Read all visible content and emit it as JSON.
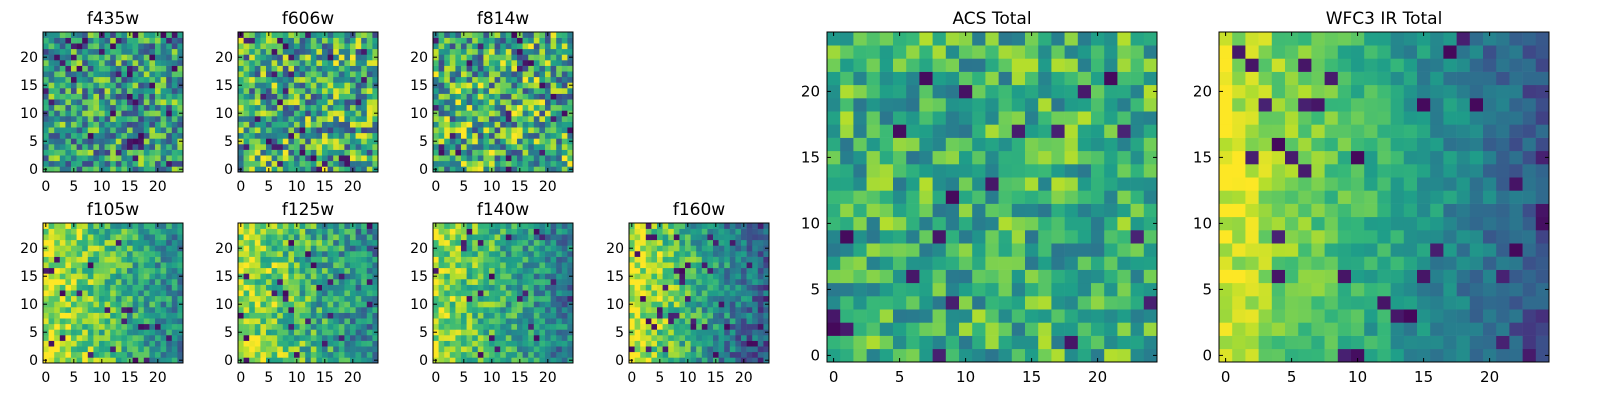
{
  "chart_data": [
    {
      "id": "f435w",
      "type": "heatmap",
      "title": "f435w",
      "n": 25,
      "pattern": "noise",
      "mean": 0.55,
      "amp": 0.35,
      "dark": 0.06,
      "xticks": [
        0,
        5,
        10,
        15,
        20
      ],
      "yticks": [
        0,
        5,
        10,
        15,
        20
      ],
      "xlim": [
        0,
        24
      ],
      "ylim": [
        0,
        24
      ],
      "colormap": "viridis"
    },
    {
      "id": "f606w",
      "type": "heatmap",
      "title": "f606w",
      "n": 25,
      "pattern": "noise",
      "mean": 0.6,
      "amp": 0.4,
      "dark": 0.05,
      "xticks": [
        0,
        5,
        10,
        15,
        20
      ],
      "yticks": [
        0,
        5,
        10,
        15,
        20
      ],
      "xlim": [
        0,
        24
      ],
      "ylim": [
        0,
        24
      ],
      "colormap": "viridis"
    },
    {
      "id": "f814w",
      "type": "heatmap",
      "title": "f814w",
      "n": 25,
      "pattern": "noise",
      "mean": 0.62,
      "amp": 0.4,
      "dark": 0.05,
      "xticks": [
        0,
        5,
        10,
        15,
        20
      ],
      "yticks": [
        0,
        5,
        10,
        15,
        20
      ],
      "xlim": [
        0,
        24
      ],
      "ylim": [
        0,
        24
      ],
      "colormap": "viridis"
    },
    {
      "id": "f105w",
      "type": "heatmap",
      "title": "f105w",
      "n": 25,
      "pattern": "gradient",
      "mean": 0.68,
      "amp": 0.22,
      "dark": 0.03,
      "xticks": [
        0,
        5,
        10,
        15,
        20
      ],
      "yticks": [
        0,
        5,
        10,
        15,
        20
      ],
      "xlim": [
        0,
        24
      ],
      "ylim": [
        0,
        24
      ],
      "colormap": "viridis"
    },
    {
      "id": "f125w",
      "type": "heatmap",
      "title": "f125w",
      "n": 25,
      "pattern": "gradient",
      "mean": 0.65,
      "amp": 0.25,
      "dark": 0.04,
      "xticks": [
        0,
        5,
        10,
        15,
        20
      ],
      "yticks": [
        0,
        5,
        10,
        15,
        20
      ],
      "xlim": [
        0,
        24
      ],
      "ylim": [
        0,
        24
      ],
      "colormap": "viridis"
    },
    {
      "id": "f140w",
      "type": "heatmap",
      "title": "f140w",
      "n": 25,
      "pattern": "gradient",
      "mean": 0.62,
      "amp": 0.22,
      "dark": 0.03,
      "xticks": [
        0,
        5,
        10,
        15,
        20
      ],
      "yticks": [
        0,
        5,
        10,
        15,
        20
      ],
      "xlim": [
        0,
        24
      ],
      "ylim": [
        0,
        24
      ],
      "colormap": "viridis"
    },
    {
      "id": "f160w",
      "type": "heatmap",
      "title": "f160w",
      "n": 25,
      "pattern": "gradient_strong",
      "mean": 0.55,
      "amp": 0.22,
      "dark": 0.06,
      "xticks": [
        0,
        5,
        10,
        15,
        20
      ],
      "yticks": [
        0,
        5,
        10,
        15,
        20
      ],
      "xlim": [
        0,
        24
      ],
      "ylim": [
        0,
        24
      ],
      "colormap": "viridis"
    },
    {
      "id": "acs-total",
      "type": "heatmap",
      "title": "ACS Total",
      "n": 25,
      "pattern": "noise",
      "mean": 0.64,
      "amp": 0.25,
      "dark": 0.04,
      "xticks": [
        0,
        5,
        10,
        15,
        20
      ],
      "yticks": [
        0,
        5,
        10,
        15,
        20
      ],
      "xlim": [
        0,
        24
      ],
      "ylim": [
        0,
        24
      ],
      "colormap": "viridis"
    },
    {
      "id": "wfc3-ir-total",
      "type": "heatmap",
      "title": "WFC3 IR Total",
      "n": 25,
      "pattern": "gradient_strong",
      "mean": 0.55,
      "amp": 0.12,
      "dark": 0.05,
      "xticks": [
        0,
        5,
        10,
        15,
        20
      ],
      "yticks": [
        0,
        5,
        10,
        15,
        20
      ],
      "xlim": [
        0,
        24
      ],
      "ylim": [
        0,
        24
      ],
      "colormap": "viridis"
    }
  ]
}
